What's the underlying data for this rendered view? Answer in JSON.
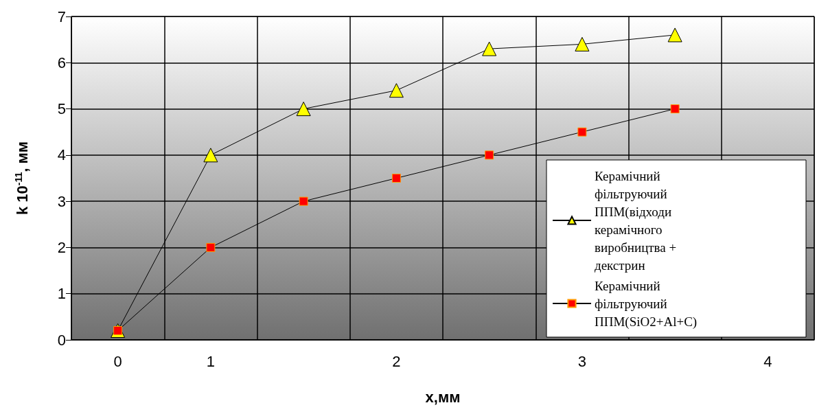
{
  "chart_data": {
    "type": "line",
    "xlabel": "x,мм",
    "ylabel": "k 10$^{-11}$, мм",
    "categories": [
      "0",
      "1",
      null,
      "2",
      null,
      "3",
      null,
      "4"
    ],
    "series": [
      {
        "name": "Керамічний фільтруючий ППМ(відходи керамічного виробництва + декстрин",
        "color": "#ffff00",
        "marker": "triangle",
        "values": [
          0.2,
          4,
          5,
          5.4,
          6.3,
          6.4,
          6.6,
          null
        ]
      },
      {
        "name": "Керамічний фільтруючий ППМ(SiO2+Al+C)",
        "color": "#ff0000",
        "marker": "square",
        "values": [
          0.2,
          2,
          3,
          3.5,
          4,
          4.5,
          5,
          null
        ]
      }
    ],
    "ylim": [
      0,
      7
    ],
    "yticks": [
      0,
      1,
      2,
      3,
      4,
      5,
      6,
      7
    ],
    "grid": true,
    "legend": "bottom right",
    "line_style": "solid"
  }
}
